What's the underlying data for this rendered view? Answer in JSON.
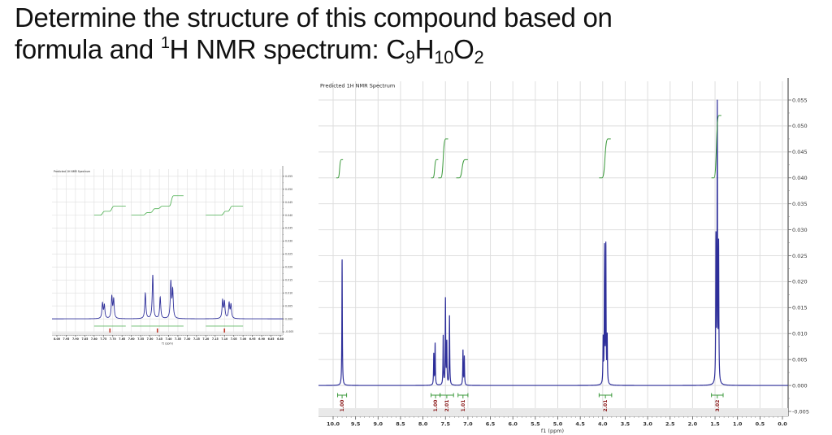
{
  "title": {
    "line1": "Determine the structure of this compound based on",
    "line2_prefix": "formula and ",
    "sup": "1",
    "line2_mid": "H NMR spectrum:  C",
    "sub_c": "9",
    "h": "H",
    "sub_h": "10",
    "o": "O",
    "sub_o": "2"
  },
  "chart_data": [
    {
      "type": "line",
      "id": "main-spectrum",
      "title": "Predicted 1H NMR Spectrum",
      "xlabel": "f1 (ppm)",
      "ylabel": "",
      "xlim": [
        10.0,
        0.0
      ],
      "ylim": [
        -0.005,
        0.055
      ],
      "grid": true,
      "x_ticks": [
        "10.0",
        "9.5",
        "9.0",
        "8.5",
        "8.0",
        "7.5",
        "7.0",
        "6.5",
        "6.0",
        "5.5",
        "5.0",
        "4.5",
        "4.0",
        "3.5",
        "3.0",
        "2.5",
        "2.0",
        "1.5",
        "1.0",
        "0.5",
        "0.0"
      ],
      "y_ticks": [
        "0.055",
        "0.050",
        "0.045",
        "0.040",
        "0.035",
        "0.030",
        "0.025",
        "0.020",
        "0.015",
        "0.010",
        "0.005",
        "0.000",
        "-0.005"
      ],
      "peaks": [
        {
          "ppm": 9.8,
          "height": 0.0245,
          "multiplicity": "s",
          "lines": [
            [
              9.8,
              0.0245
            ]
          ]
        },
        {
          "ppm": 7.74,
          "height": 0.008,
          "multiplicity": "d",
          "lines": [
            [
              7.76,
              0.006
            ],
            [
              7.73,
              0.008
            ]
          ]
        },
        {
          "ppm": 7.5,
          "height": 0.0165,
          "multiplicity": "m",
          "lines": [
            [
              7.55,
              0.0095
            ],
            [
              7.5,
              0.0165
            ],
            [
              7.47,
              0.008
            ],
            [
              7.41,
              0.0135
            ]
          ]
        },
        {
          "ppm": 7.09,
          "height": 0.0067,
          "multiplicity": "d",
          "lines": [
            [
              7.11,
              0.0067
            ],
            [
              7.08,
              0.0055
            ]
          ]
        },
        {
          "ppm": 3.95,
          "height": 0.0265,
          "multiplicity": "q",
          "lines": [
            [
              3.99,
              0.0085
            ],
            [
              3.96,
              0.026
            ],
            [
              3.93,
              0.0265
            ],
            [
              3.9,
              0.009
            ]
          ]
        },
        {
          "ppm": 1.45,
          "height": 0.053,
          "multiplicity": "t",
          "lines": [
            [
              1.48,
              0.0275
            ],
            [
              1.45,
              0.053
            ],
            [
              1.42,
              0.026
            ]
          ]
        }
      ],
      "integrals": [
        {
          "ppm_from": 9.9,
          "ppm_to": 9.7,
          "value": "1.00"
        },
        {
          "ppm_from": 7.82,
          "ppm_to": 7.62,
          "value": "1.00"
        },
        {
          "ppm_from": 7.62,
          "ppm_to": 7.32,
          "value": "2.01"
        },
        {
          "ppm_from": 7.22,
          "ppm_to": 7.0,
          "value": "1.01"
        },
        {
          "ppm_from": 4.08,
          "ppm_to": 3.8,
          "value": "2.01"
        },
        {
          "ppm_from": 1.58,
          "ppm_to": 1.32,
          "value": "3.02"
        }
      ],
      "integral_curves": [
        {
          "x_from": 9.93,
          "x_to": 9.78,
          "y_start": 0.04,
          "y_end": 0.0435
        },
        {
          "x_from": 7.82,
          "x_to": 7.66,
          "y_start": 0.04,
          "y_end": 0.0435
        },
        {
          "x_from": 7.66,
          "x_to": 7.44,
          "y_start": 0.04,
          "y_end": 0.0475
        },
        {
          "x_from": 7.26,
          "x_to": 7.0,
          "y_start": 0.04,
          "y_end": 0.0435
        },
        {
          "x_from": 4.08,
          "x_to": 3.82,
          "y_start": 0.04,
          "y_end": 0.0475
        },
        {
          "x_from": 1.58,
          "x_to": 1.36,
          "y_start": 0.04,
          "y_end": 0.052
        }
      ]
    },
    {
      "type": "line",
      "id": "inset-aromatic-expansion",
      "title": "Predicted 1H NMR Spectrum",
      "xlabel": "f1 (ppm)",
      "xlim": [
        8.0,
        6.8
      ],
      "ylim": [
        -0.005,
        0.055
      ],
      "grid": true,
      "x_ticks": [
        "8.00",
        "7.95",
        "7.90",
        "7.85",
        "7.80",
        "7.75",
        "7.70",
        "7.65",
        "7.60",
        "7.55",
        "7.50",
        "7.45",
        "7.40",
        "7.35",
        "7.30",
        "7.25",
        "7.20",
        "7.15",
        "7.10",
        "7.05",
        "7.00",
        "6.95",
        "6.90",
        "6.85",
        "6.80"
      ],
      "y_ticks": [
        "0.055",
        "0.050",
        "0.045",
        "0.040",
        "0.035",
        "0.030",
        "0.025",
        "0.020",
        "0.015",
        "0.010",
        "0.005",
        "0.000",
        "-0.005"
      ],
      "peaks": [
        {
          "ppm": 7.755,
          "height": 0.0058
        },
        {
          "ppm": 7.745,
          "height": 0.005
        },
        {
          "ppm": 7.705,
          "height": 0.0082
        },
        {
          "ppm": 7.695,
          "height": 0.0072
        },
        {
          "ppm": 7.525,
          "height": 0.0098
        },
        {
          "ppm": 7.485,
          "height": 0.0168
        },
        {
          "ppm": 7.445,
          "height": 0.0082
        },
        {
          "ppm": 7.388,
          "height": 0.0138
        },
        {
          "ppm": 7.378,
          "height": 0.0105
        },
        {
          "ppm": 7.11,
          "height": 0.0068
        },
        {
          "ppm": 7.1,
          "height": 0.0062
        },
        {
          "ppm": 7.075,
          "height": 0.0058
        },
        {
          "ppm": 7.065,
          "height": 0.0052
        }
      ],
      "integral_ranges": [
        {
          "from": 7.8,
          "to": 7.63
        },
        {
          "from": 7.6,
          "to": 7.32
        },
        {
          "from": 7.2,
          "to": 7.0
        }
      ]
    }
  ]
}
